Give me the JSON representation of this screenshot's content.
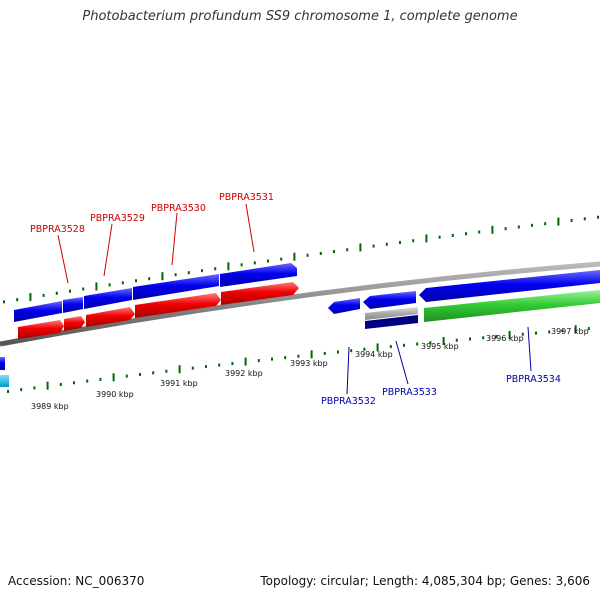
{
  "title": "Photobacterium profundum SS9 chromosome 1, complete genome",
  "accession": "Accession: NC_006370",
  "topology": "Topology: circular; Length: 4,085,304 bp; Genes: 3,606",
  "scale_labels": [
    "3989 kbp",
    "3990 kbp",
    "3991 kbp",
    "3992 kbp",
    "3993 kbp",
    "3994 kbp",
    "3995 kbp",
    "3996 kbp",
    "3997 kbp"
  ],
  "forward_gene_labels": [
    "PBPRA3528",
    "PBPRA3529",
    "PBPRA3530",
    "PBPRA3531"
  ],
  "reverse_gene_labels": [
    "PBPRA3532",
    "PBPRA3533",
    "PBPRA3534"
  ],
  "colors": {
    "forward_label": "#cc0000",
    "reverse_label": "#0000aa",
    "cds": "#0000ee",
    "gene_forward": "#ee0000",
    "gene_reverse": "#33cc33",
    "pseudo": "#aaaaaa",
    "misc": "#000080",
    "edge": "#00bbee",
    "backbone": "#888888",
    "ticks": "#006600"
  }
}
